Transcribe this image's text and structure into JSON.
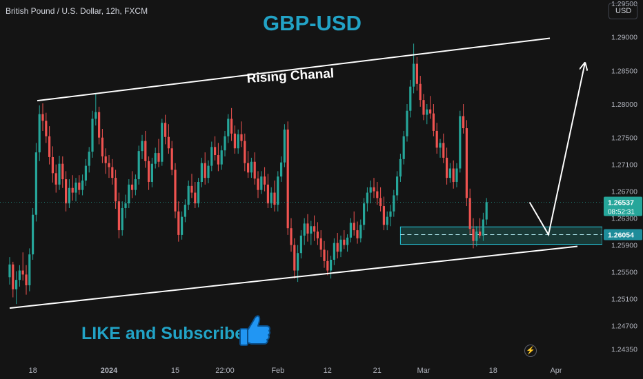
{
  "header": {
    "symbol_info": "British Pound / U.S. Dollar, 12h, FXCM",
    "currency_button": "USD"
  },
  "overlay": {
    "title": "GBP-USD",
    "channel_label": "Rising Chanal",
    "promo_text": "LIKE and Subscribe",
    "thumb_icon": "thumbs-up-icon",
    "bolt_icon": "lightning-icon"
  },
  "colors": {
    "up": "#26a69a",
    "down": "#ef5350",
    "accent": "#22a3c6",
    "background": "#141414"
  },
  "chart_data": {
    "type": "candlestick",
    "title": "GBP-USD",
    "price_axis": {
      "ticks": [
        "1.29500",
        "1.29000",
        "1.28500",
        "1.28000",
        "1.27500",
        "1.27100",
        "1.26700",
        "1.26300",
        "1.25900",
        "1.25500",
        "1.25100",
        "1.24700",
        "1.24350"
      ],
      "range": [
        1.2415,
        1.2955
      ]
    },
    "time_axis": {
      "ticks": [
        "18",
        "2024",
        "15",
        "22:00",
        "Feb",
        "12",
        "21",
        "Mar",
        "18",
        "Apr"
      ]
    },
    "last_price": {
      "value": "1.26537",
      "countdown": "08:52:31"
    },
    "support_zone": {
      "low": 1.2591,
      "high": 1.2617,
      "level_label": "1.26054",
      "level": 1.26054
    },
    "channel": {
      "upper": [
        {
          "time": "Dec 12",
          "price": 1.2805
        },
        {
          "time": "Mar 29",
          "price": 1.2898
        }
      ],
      "lower": [
        {
          "time": "Dec 12",
          "price": 1.2496
        },
        {
          "time": "Mar 29",
          "price": 1.2588
        }
      ]
    },
    "projection": [
      "1.26537",
      "1.26054",
      "1.28600"
    ],
    "candles": [
      [
        1.2542,
        1.2572,
        1.2531,
        1.2561
      ],
      [
        1.2561,
        1.2565,
        1.2512,
        1.2524
      ],
      [
        1.2524,
        1.2551,
        1.2502,
        1.2538
      ],
      [
        1.2538,
        1.256,
        1.2528,
        1.2552
      ],
      [
        1.2552,
        1.2579,
        1.2537,
        1.2546
      ],
      [
        1.2546,
        1.256,
        1.2516,
        1.253
      ],
      [
        1.253,
        1.2585,
        1.2521,
        1.2576
      ],
      [
        1.2576,
        1.2645,
        1.2568,
        1.2635
      ],
      [
        1.2635,
        1.2742,
        1.2625,
        1.2728
      ],
      [
        1.2728,
        1.2798,
        1.2715,
        1.2785
      ],
      [
        1.2785,
        1.2801,
        1.276,
        1.2775
      ],
      [
        1.2775,
        1.2787,
        1.2742,
        1.2752
      ],
      [
        1.2752,
        1.2767,
        1.271,
        1.2721
      ],
      [
        1.2721,
        1.2737,
        1.2683,
        1.2697
      ],
      [
        1.2697,
        1.271,
        1.2668,
        1.268
      ],
      [
        1.268,
        1.2723,
        1.2672,
        1.2711
      ],
      [
        1.2711,
        1.2722,
        1.2675,
        1.2688
      ],
      [
        1.2688,
        1.27,
        1.264,
        1.2652
      ],
      [
        1.2652,
        1.2688,
        1.2645,
        1.2675
      ],
      [
        1.2675,
        1.2694,
        1.2656,
        1.2668
      ],
      [
        1.2668,
        1.269,
        1.2655,
        1.2683
      ],
      [
        1.2683,
        1.2694,
        1.2665,
        1.2672
      ],
      [
        1.2672,
        1.2695,
        1.2664,
        1.2686
      ],
      [
        1.2686,
        1.2718,
        1.2678,
        1.2708
      ],
      [
        1.2708,
        1.2736,
        1.2698,
        1.2729
      ],
      [
        1.2729,
        1.279,
        1.272,
        1.2778
      ],
      [
        1.2778,
        1.2815,
        1.2768,
        1.2788
      ],
      [
        1.2788,
        1.2796,
        1.274,
        1.275
      ],
      [
        1.275,
        1.2763,
        1.2712,
        1.2722
      ],
      [
        1.2722,
        1.2734,
        1.2696,
        1.2712
      ],
      [
        1.2712,
        1.2724,
        1.269,
        1.2706
      ],
      [
        1.2706,
        1.2718,
        1.268,
        1.269
      ],
      [
        1.269,
        1.2702,
        1.2644,
        1.2655
      ],
      [
        1.2655,
        1.2668,
        1.26,
        1.2612
      ],
      [
        1.2612,
        1.2655,
        1.2604,
        1.2645
      ],
      [
        1.2645,
        1.2665,
        1.263,
        1.2652
      ],
      [
        1.2652,
        1.2688,
        1.2645,
        1.268
      ],
      [
        1.268,
        1.27,
        1.266,
        1.2672
      ],
      [
        1.2672,
        1.2695,
        1.2664,
        1.2688
      ],
      [
        1.2688,
        1.2738,
        1.268,
        1.273
      ],
      [
        1.273,
        1.2754,
        1.2718,
        1.2745
      ],
      [
        1.2745,
        1.276,
        1.2705,
        1.2715
      ],
      [
        1.2715,
        1.2722,
        1.2672,
        1.2684
      ],
      [
        1.2684,
        1.272,
        1.2676,
        1.2711
      ],
      [
        1.2711,
        1.2735,
        1.2704,
        1.2727
      ],
      [
        1.2727,
        1.2748,
        1.2706,
        1.2714
      ],
      [
        1.2714,
        1.2778,
        1.2708,
        1.2772
      ],
      [
        1.2772,
        1.2784,
        1.274,
        1.2751
      ],
      [
        1.2751,
        1.277,
        1.2726,
        1.2734
      ],
      [
        1.2734,
        1.2745,
        1.2694,
        1.2702
      ],
      [
        1.2702,
        1.2712,
        1.263,
        1.264
      ],
      [
        1.264,
        1.2655,
        1.2595,
        1.2605
      ],
      [
        1.2605,
        1.264,
        1.2598,
        1.2632
      ],
      [
        1.2632,
        1.2658,
        1.2624,
        1.265
      ],
      [
        1.265,
        1.2686,
        1.2642,
        1.2678
      ],
      [
        1.2678,
        1.2696,
        1.266,
        1.2668
      ],
      [
        1.2668,
        1.2684,
        1.2645,
        1.2652
      ],
      [
        1.2652,
        1.269,
        1.2646,
        1.2684
      ],
      [
        1.2684,
        1.272,
        1.2676,
        1.2712
      ],
      [
        1.2712,
        1.2728,
        1.268,
        1.269
      ],
      [
        1.269,
        1.2716,
        1.2682,
        1.2708
      ],
      [
        1.2708,
        1.2744,
        1.27,
        1.2736
      ],
      [
        1.2736,
        1.2752,
        1.2716,
        1.2724
      ],
      [
        1.2724,
        1.2742,
        1.27,
        1.271
      ],
      [
        1.271,
        1.2738,
        1.2702,
        1.2731
      ],
      [
        1.2731,
        1.276,
        1.2722,
        1.2752
      ],
      [
        1.2752,
        1.2785,
        1.2742,
        1.2778
      ],
      [
        1.2778,
        1.2794,
        1.2745,
        1.2756
      ],
      [
        1.2756,
        1.2768,
        1.2726,
        1.2734
      ],
      [
        1.2734,
        1.2762,
        1.2726,
        1.2755
      ],
      [
        1.2755,
        1.2774,
        1.2736,
        1.2745
      ],
      [
        1.2745,
        1.2756,
        1.27,
        1.2712
      ],
      [
        1.2712,
        1.273,
        1.269,
        1.2698
      ],
      [
        1.2698,
        1.272,
        1.269,
        1.2714
      ],
      [
        1.2714,
        1.2728,
        1.268,
        1.2689
      ],
      [
        1.2689,
        1.27,
        1.266,
        1.2672
      ],
      [
        1.2672,
        1.27,
        1.2666,
        1.2692
      ],
      [
        1.2692,
        1.2706,
        1.267,
        1.268
      ],
      [
        1.268,
        1.2696,
        1.2645,
        1.2652
      ],
      [
        1.2652,
        1.2676,
        1.2645,
        1.2668
      ],
      [
        1.2668,
        1.2686,
        1.264,
        1.265
      ],
      [
        1.265,
        1.27,
        1.264,
        1.2692
      ],
      [
        1.2692,
        1.2722,
        1.2684,
        1.2713
      ],
      [
        1.2713,
        1.277,
        1.2706,
        1.2762
      ],
      [
        1.2762,
        1.2774,
        1.2605,
        1.2615
      ],
      [
        1.2615,
        1.263,
        1.258,
        1.259
      ],
      [
        1.259,
        1.26,
        1.254,
        1.2552
      ],
      [
        1.2552,
        1.259,
        1.2535,
        1.2578
      ],
      [
        1.2578,
        1.2612,
        1.257,
        1.2604
      ],
      [
        1.2604,
        1.263,
        1.259,
        1.2622
      ],
      [
        1.2622,
        1.2636,
        1.2595,
        1.2607
      ],
      [
        1.2607,
        1.2626,
        1.259,
        1.2618
      ],
      [
        1.2618,
        1.2634,
        1.2596,
        1.261
      ],
      [
        1.261,
        1.2624,
        1.259,
        1.26
      ],
      [
        1.26,
        1.2612,
        1.2572,
        1.2583
      ],
      [
        1.2583,
        1.2596,
        1.2556,
        1.2566
      ],
      [
        1.2566,
        1.2582,
        1.2545,
        1.2552
      ],
      [
        1.2552,
        1.2574,
        1.254,
        1.2568
      ],
      [
        1.2568,
        1.26,
        1.256,
        1.2593
      ],
      [
        1.2593,
        1.2608,
        1.257,
        1.258
      ],
      [
        1.258,
        1.2604,
        1.2572,
        1.2598
      ],
      [
        1.2598,
        1.2612,
        1.2584,
        1.259
      ],
      [
        1.259,
        1.2606,
        1.258,
        1.2601
      ],
      [
        1.2601,
        1.263,
        1.2594,
        1.2623
      ],
      [
        1.2623,
        1.264,
        1.2604,
        1.2612
      ],
      [
        1.2612,
        1.2625,
        1.2592,
        1.26
      ],
      [
        1.26,
        1.2628,
        1.2594,
        1.262
      ],
      [
        1.262,
        1.266,
        1.2612,
        1.2652
      ],
      [
        1.2652,
        1.2676,
        1.264,
        1.2668
      ],
      [
        1.2668,
        1.2686,
        1.2652,
        1.2676
      ],
      [
        1.2676,
        1.269,
        1.266,
        1.267
      ],
      [
        1.267,
        1.2684,
        1.265,
        1.266
      ],
      [
        1.266,
        1.2676,
        1.264,
        1.2648
      ],
      [
        1.2648,
        1.2662,
        1.2612,
        1.262
      ],
      [
        1.262,
        1.264,
        1.2612,
        1.2632
      ],
      [
        1.2632,
        1.265,
        1.2618,
        1.264
      ],
      [
        1.264,
        1.2672,
        1.2632,
        1.2664
      ],
      [
        1.2664,
        1.27,
        1.2656,
        1.2692
      ],
      [
        1.2692,
        1.2726,
        1.2684,
        1.2718
      ],
      [
        1.2718,
        1.276,
        1.271,
        1.2752
      ],
      [
        1.2752,
        1.28,
        1.2744,
        1.279
      ],
      [
        1.279,
        1.2836,
        1.278,
        1.2826
      ],
      [
        1.2826,
        1.289,
        1.2816,
        1.286
      ],
      [
        1.286,
        1.287,
        1.282,
        1.283
      ],
      [
        1.283,
        1.2842,
        1.2796,
        1.2806
      ],
      [
        1.2806,
        1.2815,
        1.2776,
        1.2784
      ],
      [
        1.2784,
        1.28,
        1.277,
        1.2792
      ],
      [
        1.2792,
        1.2812,
        1.2778,
        1.2786
      ],
      [
        1.2786,
        1.28,
        1.2752,
        1.276
      ],
      [
        1.276,
        1.2772,
        1.2726,
        1.2735
      ],
      [
        1.2735,
        1.2748,
        1.272,
        1.2742
      ],
      [
        1.2742,
        1.2756,
        1.2712,
        1.272
      ],
      [
        1.272,
        1.2735,
        1.268,
        1.269
      ],
      [
        1.269,
        1.2712,
        1.2683,
        1.2704
      ],
      [
        1.2704,
        1.2716,
        1.2674,
        1.2684
      ],
      [
        1.2684,
        1.2712,
        1.2676,
        1.2704
      ],
      [
        1.2704,
        1.279,
        1.2698,
        1.2782
      ],
      [
        1.2782,
        1.28,
        1.2756,
        1.2764
      ],
      [
        1.2764,
        1.2776,
        1.2648,
        1.266
      ],
      [
        1.266,
        1.2674,
        1.2606,
        1.2614
      ],
      [
        1.2614,
        1.263,
        1.2585,
        1.2596
      ],
      [
        1.2596,
        1.2618,
        1.2588,
        1.261
      ],
      [
        1.261,
        1.263,
        1.26,
        1.2604
      ],
      [
        1.2604,
        1.2638,
        1.2596,
        1.2628
      ],
      [
        1.2628,
        1.266,
        1.262,
        1.2654
      ]
    ]
  }
}
